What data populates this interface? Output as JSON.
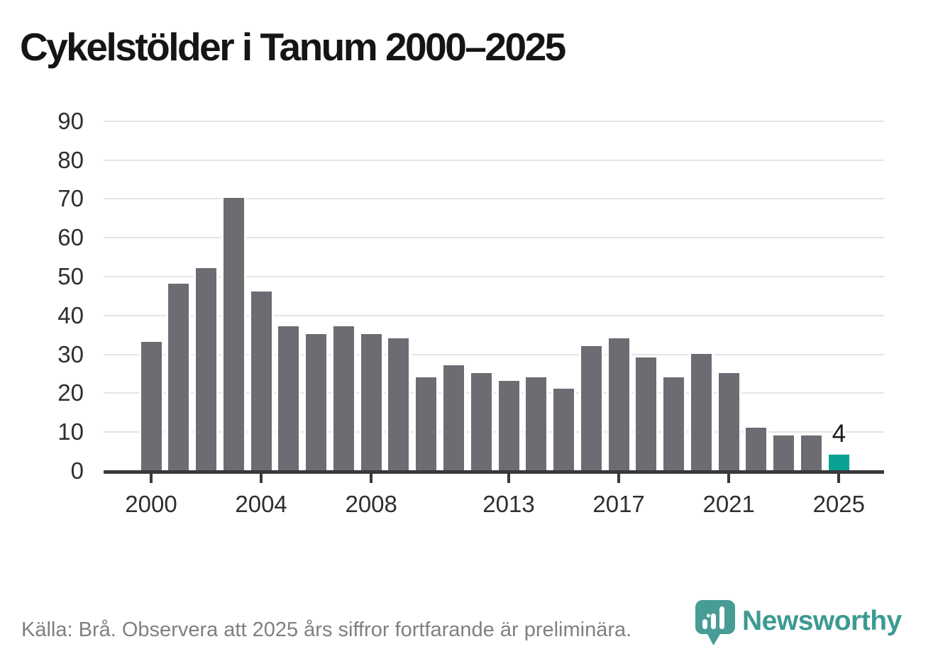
{
  "title": "Cykelstölder i Tanum 2000–2025",
  "footer": {
    "source_text": "Källa: Brå. Observera att 2025 års siffror fortfarande är preliminära."
  },
  "logo": {
    "text": "Newsworthy",
    "icon": "newsworthy-pin-icon"
  },
  "colors": {
    "bar": "#6d6c72",
    "highlight": "#0ba296",
    "gridline": "#e4e4e4",
    "axis": "#3a3a3a",
    "tick_label": "#2e2e2e",
    "title": "#151515",
    "source_text": "#808080",
    "logo_teal": "#3d9a93"
  },
  "chart_data": {
    "type": "bar",
    "title": "Cykelstölder i Tanum 2000–2025",
    "categories": [
      2000,
      2001,
      2002,
      2003,
      2004,
      2005,
      2006,
      2007,
      2008,
      2009,
      2010,
      2011,
      2012,
      2013,
      2014,
      2015,
      2016,
      2017,
      2018,
      2019,
      2020,
      2021,
      2022,
      2023,
      2024,
      2025
    ],
    "values": [
      33,
      48,
      52,
      70,
      46,
      37,
      35,
      37,
      35,
      34,
      24,
      27,
      25,
      23,
      24,
      21,
      32,
      34,
      29,
      24,
      30,
      25,
      11,
      9,
      9,
      4
    ],
    "highlight_index": 25,
    "annotation": {
      "text": "4",
      "year": 2025
    },
    "xlabel": "",
    "ylabel": "",
    "x_tick_years": [
      2000,
      2004,
      2008,
      2013,
      2017,
      2021,
      2025
    ],
    "y_ticks": [
      0,
      10,
      20,
      30,
      40,
      50,
      60,
      70,
      80,
      90
    ],
    "ylim": [
      0,
      90
    ],
    "grid": "horizontal",
    "legend": "none"
  }
}
